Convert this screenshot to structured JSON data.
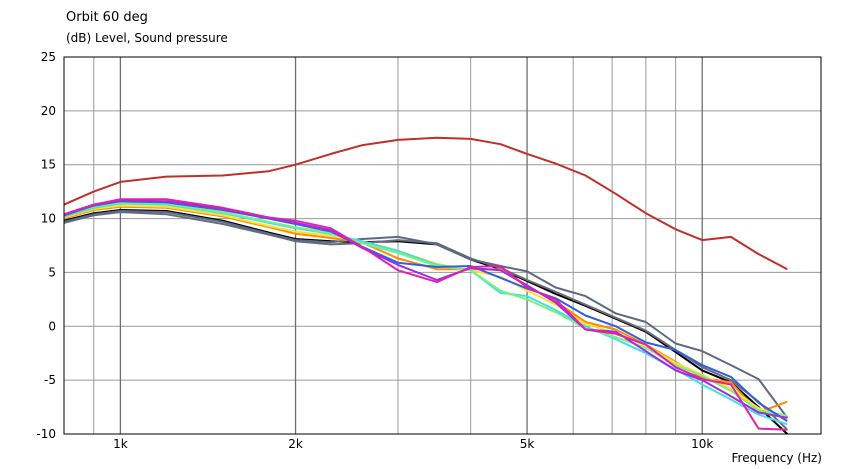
{
  "chart_data": {
    "type": "line",
    "title": "Orbit 60 deg",
    "ylabel": "(dB)  Level, Sound pressure",
    "xlabel": "Frequency  (Hz)",
    "x_scale": "log",
    "xlim": [
      800,
      16000
    ],
    "ylim": [
      -10,
      25
    ],
    "y_ticks": [
      25,
      20,
      15,
      10,
      5,
      0,
      -5,
      -10
    ],
    "x_ticks": [
      {
        "value": 1000,
        "label": "1k"
      },
      {
        "value": 2000,
        "label": "2k"
      },
      {
        "value": 5000,
        "label": "5k"
      },
      {
        "value": 10000,
        "label": "10k"
      }
    ],
    "x_minor_ticks": [
      800,
      900,
      1000,
      2000,
      3000,
      4000,
      5000,
      6000,
      7000,
      8000,
      9000,
      10000
    ],
    "grid": true,
    "series": [
      {
        "color": "#c0302a",
        "points": [
          [
            800,
            11.3
          ],
          [
            900,
            12.5
          ],
          [
            1000,
            13.4
          ],
          [
            1200,
            13.9
          ],
          [
            1500,
            14.0
          ],
          [
            1800,
            14.4
          ],
          [
            2000,
            15.0
          ],
          [
            2300,
            16.0
          ],
          [
            2600,
            16.8
          ],
          [
            3000,
            17.3
          ],
          [
            3500,
            17.5
          ],
          [
            4000,
            17.4
          ],
          [
            4500,
            16.9
          ],
          [
            5000,
            16.0
          ],
          [
            5600,
            15.1
          ],
          [
            6300,
            14.0
          ],
          [
            7100,
            12.3
          ],
          [
            8000,
            10.5
          ],
          [
            9000,
            9.0
          ],
          [
            10000,
            8.0
          ],
          [
            11200,
            8.3
          ],
          [
            12500,
            6.7
          ],
          [
            14000,
            5.3
          ]
        ]
      },
      {
        "color": "#000000",
        "points": [
          [
            800,
            9.8
          ],
          [
            900,
            10.5
          ],
          [
            1000,
            10.8
          ],
          [
            1200,
            10.7
          ],
          [
            1500,
            9.8
          ],
          [
            1800,
            8.7
          ],
          [
            2000,
            8.1
          ],
          [
            2300,
            7.9
          ],
          [
            2600,
            7.8
          ],
          [
            3000,
            7.9
          ],
          [
            3500,
            7.6
          ],
          [
            4000,
            6.2
          ],
          [
            4500,
            5.3
          ],
          [
            5000,
            4.2
          ],
          [
            5600,
            3.0
          ],
          [
            6300,
            1.9
          ],
          [
            7100,
            0.7
          ],
          [
            8000,
            -0.5
          ],
          [
            9000,
            -2.4
          ],
          [
            10000,
            -4.1
          ],
          [
            11200,
            -5.2
          ],
          [
            12500,
            -7.5
          ],
          [
            14000,
            -10.0
          ]
        ]
      },
      {
        "color": "#6b6b7a",
        "points": [
          [
            800,
            9.6
          ],
          [
            900,
            10.3
          ],
          [
            1000,
            10.6
          ],
          [
            1200,
            10.4
          ],
          [
            1500,
            9.5
          ],
          [
            1800,
            8.5
          ],
          [
            2000,
            7.9
          ],
          [
            2300,
            7.6
          ],
          [
            2600,
            7.7
          ],
          [
            3000,
            8.0
          ],
          [
            3500,
            7.7
          ],
          [
            4000,
            6.3
          ],
          [
            4500,
            5.4
          ],
          [
            5000,
            4.3
          ],
          [
            5600,
            3.2
          ],
          [
            6300,
            2.0
          ],
          [
            7100,
            0.8
          ],
          [
            8000,
            -0.4
          ],
          [
            9000,
            -2.2
          ],
          [
            10000,
            -3.8
          ],
          [
            11200,
            -5.0
          ],
          [
            12500,
            -7.0
          ],
          [
            14000,
            -9.6
          ]
        ]
      },
      {
        "color": "#5a6a86",
        "points": [
          [
            800,
            9.7
          ],
          [
            900,
            10.4
          ],
          [
            1000,
            10.7
          ],
          [
            1200,
            10.6
          ],
          [
            1500,
            9.7
          ],
          [
            1800,
            8.6
          ],
          [
            2000,
            8.0
          ],
          [
            2300,
            7.8
          ],
          [
            2600,
            8.1
          ],
          [
            3000,
            8.3
          ],
          [
            3500,
            7.6
          ],
          [
            4000,
            6.2
          ],
          [
            4500,
            5.6
          ],
          [
            5000,
            5.1
          ],
          [
            5600,
            3.6
          ],
          [
            6300,
            2.8
          ],
          [
            7100,
            1.2
          ],
          [
            8000,
            0.4
          ],
          [
            9000,
            -1.6
          ],
          [
            10000,
            -2.3
          ],
          [
            11200,
            -3.6
          ],
          [
            12500,
            -4.9
          ],
          [
            14000,
            -8.5
          ]
        ]
      },
      {
        "color": "#ff8a00",
        "points": [
          [
            800,
            10.0
          ],
          [
            900,
            10.8
          ],
          [
            1000,
            11.1
          ],
          [
            1200,
            11.0
          ],
          [
            1500,
            10.2
          ],
          [
            1800,
            9.2
          ],
          [
            2000,
            8.6
          ],
          [
            2300,
            8.2
          ],
          [
            2600,
            7.8
          ],
          [
            3000,
            6.3
          ],
          [
            3500,
            5.3
          ],
          [
            4000,
            5.3
          ],
          [
            4500,
            5.3
          ],
          [
            5000,
            3.7
          ],
          [
            5600,
            2.3
          ],
          [
            6300,
            0.4
          ],
          [
            7100,
            -0.3
          ],
          [
            8000,
            -1.7
          ],
          [
            9000,
            -3.3
          ],
          [
            10000,
            -4.8
          ],
          [
            11200,
            -5.2
          ],
          [
            12500,
            -8.0
          ],
          [
            14000,
            -7.0
          ]
        ]
      },
      {
        "color": "#ffe030",
        "points": [
          [
            800,
            10.1
          ],
          [
            900,
            10.9
          ],
          [
            1000,
            11.2
          ],
          [
            1200,
            11.1
          ],
          [
            1500,
            10.3
          ],
          [
            1800,
            9.3
          ],
          [
            2000,
            8.8
          ],
          [
            2300,
            8.4
          ],
          [
            2600,
            7.9
          ],
          [
            3000,
            7.0
          ],
          [
            3500,
            5.8
          ],
          [
            4000,
            5.2
          ],
          [
            4500,
            4.6
          ],
          [
            5000,
            3.3
          ],
          [
            5600,
            2.0
          ],
          [
            6300,
            0.2
          ],
          [
            7100,
            -0.6
          ],
          [
            8000,
            -1.8
          ],
          [
            9000,
            -3.4
          ],
          [
            10000,
            -4.5
          ],
          [
            11200,
            -5.8
          ],
          [
            12500,
            -7.6
          ],
          [
            14000,
            -8.6
          ]
        ]
      },
      {
        "color": "#40e0e8",
        "points": [
          [
            800,
            10.2
          ],
          [
            900,
            11.0
          ],
          [
            1000,
            11.4
          ],
          [
            1200,
            11.3
          ],
          [
            1500,
            10.5
          ],
          [
            1800,
            9.6
          ],
          [
            2000,
            9.1
          ],
          [
            2300,
            8.6
          ],
          [
            2600,
            7.9
          ],
          [
            3000,
            7.0
          ],
          [
            3500,
            5.7
          ],
          [
            4000,
            5.2
          ],
          [
            4500,
            3.1
          ],
          [
            5000,
            2.8
          ],
          [
            5600,
            1.5
          ],
          [
            6300,
            0.0
          ],
          [
            7100,
            -1.2
          ],
          [
            8000,
            -2.5
          ],
          [
            9000,
            -4.0
          ],
          [
            10000,
            -5.4
          ],
          [
            11200,
            -6.8
          ],
          [
            12500,
            -8.2
          ],
          [
            14000,
            -9.1
          ]
        ]
      },
      {
        "color": "#7cf07c",
        "points": [
          [
            800,
            10.3
          ],
          [
            900,
            11.1
          ],
          [
            1000,
            11.5
          ],
          [
            1200,
            11.4
          ],
          [
            1500,
            10.6
          ],
          [
            1800,
            9.7
          ],
          [
            2000,
            9.2
          ],
          [
            2300,
            8.7
          ],
          [
            2600,
            7.7
          ],
          [
            3000,
            6.8
          ],
          [
            3500,
            5.6
          ],
          [
            4000,
            5.2
          ],
          [
            4500,
            3.3
          ],
          [
            5000,
            2.5
          ],
          [
            5600,
            1.3
          ],
          [
            6300,
            -0.2
          ],
          [
            7100,
            -1.0
          ],
          [
            8000,
            -2.0
          ],
          [
            9000,
            -3.6
          ],
          [
            10000,
            -4.6
          ],
          [
            11200,
            -6.0
          ],
          [
            12500,
            -7.8
          ],
          [
            14000,
            -8.3
          ]
        ]
      },
      {
        "color": "#3060e0",
        "points": [
          [
            800,
            10.3
          ],
          [
            900,
            11.2
          ],
          [
            1000,
            11.6
          ],
          [
            1200,
            11.5
          ],
          [
            1500,
            10.8
          ],
          [
            1800,
            10.0
          ],
          [
            2000,
            9.5
          ],
          [
            2300,
            8.8
          ],
          [
            2600,
            7.4
          ],
          [
            3000,
            5.9
          ],
          [
            3500,
            5.5
          ],
          [
            4000,
            5.6
          ],
          [
            4500,
            4.5
          ],
          [
            5000,
            3.5
          ],
          [
            5600,
            2.6
          ],
          [
            6300,
            1.0
          ],
          [
            7100,
            0.0
          ],
          [
            8000,
            -1.5
          ],
          [
            9000,
            -2.2
          ],
          [
            10000,
            -3.6
          ],
          [
            11200,
            -4.7
          ],
          [
            12500,
            -7.1
          ],
          [
            14000,
            -8.8
          ]
        ]
      },
      {
        "color": "#9a30e0",
        "points": [
          [
            800,
            10.4
          ],
          [
            900,
            11.3
          ],
          [
            1000,
            11.7
          ],
          [
            1200,
            11.6
          ],
          [
            1500,
            10.9
          ],
          [
            1800,
            10.1
          ],
          [
            2000,
            9.6
          ],
          [
            2300,
            8.9
          ],
          [
            2600,
            7.3
          ],
          [
            3000,
            5.7
          ],
          [
            3500,
            4.3
          ],
          [
            4000,
            5.4
          ],
          [
            4500,
            5.2
          ],
          [
            5000,
            3.8
          ],
          [
            5600,
            2.2
          ],
          [
            6300,
            -0.3
          ],
          [
            7100,
            -0.5
          ],
          [
            8000,
            -2.3
          ],
          [
            9000,
            -4.1
          ],
          [
            10000,
            -5.0
          ],
          [
            11200,
            -6.5
          ],
          [
            12500,
            -8.0
          ],
          [
            14000,
            -8.5
          ]
        ]
      },
      {
        "color": "#e020b0",
        "points": [
          [
            800,
            10.4
          ],
          [
            900,
            11.3
          ],
          [
            1000,
            11.8
          ],
          [
            1200,
            11.8
          ],
          [
            1500,
            11.0
          ],
          [
            1800,
            10.1
          ],
          [
            2000,
            9.8
          ],
          [
            2300,
            9.1
          ],
          [
            2600,
            7.4
          ],
          [
            3000,
            5.2
          ],
          [
            3500,
            4.1
          ],
          [
            4000,
            5.5
          ],
          [
            4500,
            5.6
          ],
          [
            5000,
            3.6
          ],
          [
            5600,
            2.5
          ],
          [
            6300,
            -0.3
          ],
          [
            7100,
            -0.7
          ],
          [
            8000,
            -1.7
          ],
          [
            9000,
            -3.8
          ],
          [
            10000,
            -4.9
          ],
          [
            11200,
            -5.4
          ],
          [
            12500,
            -9.5
          ],
          [
            14000,
            -9.6
          ]
        ]
      }
    ]
  }
}
